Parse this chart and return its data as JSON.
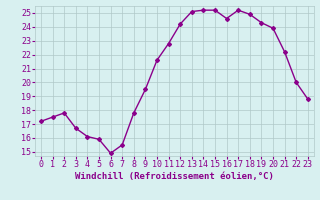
{
  "x": [
    0,
    1,
    2,
    3,
    4,
    5,
    6,
    7,
    8,
    9,
    10,
    11,
    12,
    13,
    14,
    15,
    16,
    17,
    18,
    19,
    20,
    21,
    22,
    23
  ],
  "y": [
    17.2,
    17.5,
    17.8,
    16.7,
    16.1,
    15.9,
    14.9,
    15.5,
    17.8,
    19.5,
    21.6,
    22.8,
    24.2,
    25.1,
    25.2,
    25.2,
    24.6,
    25.2,
    24.9,
    24.3,
    23.9,
    22.2,
    20.0,
    18.8
  ],
  "line_color": "#8B008B",
  "marker": "D",
  "marker_size": 2,
  "line_width": 1.0,
  "xlabel": "Windchill (Refroidissement éolien,°C)",
  "ylim": [
    14.7,
    25.5
  ],
  "xlim": [
    -0.5,
    23.5
  ],
  "yticks": [
    15,
    16,
    17,
    18,
    19,
    20,
    21,
    22,
    23,
    24,
    25
  ],
  "xticks": [
    0,
    1,
    2,
    3,
    4,
    5,
    6,
    7,
    8,
    9,
    10,
    11,
    12,
    13,
    14,
    15,
    16,
    17,
    18,
    19,
    20,
    21,
    22,
    23
  ],
  "bg_color": "#d8f0f0",
  "grid_color": "#b0c8c8",
  "tick_color": "#8B008B",
  "xlabel_fontsize": 6.5,
  "tick_fontsize": 6.0
}
